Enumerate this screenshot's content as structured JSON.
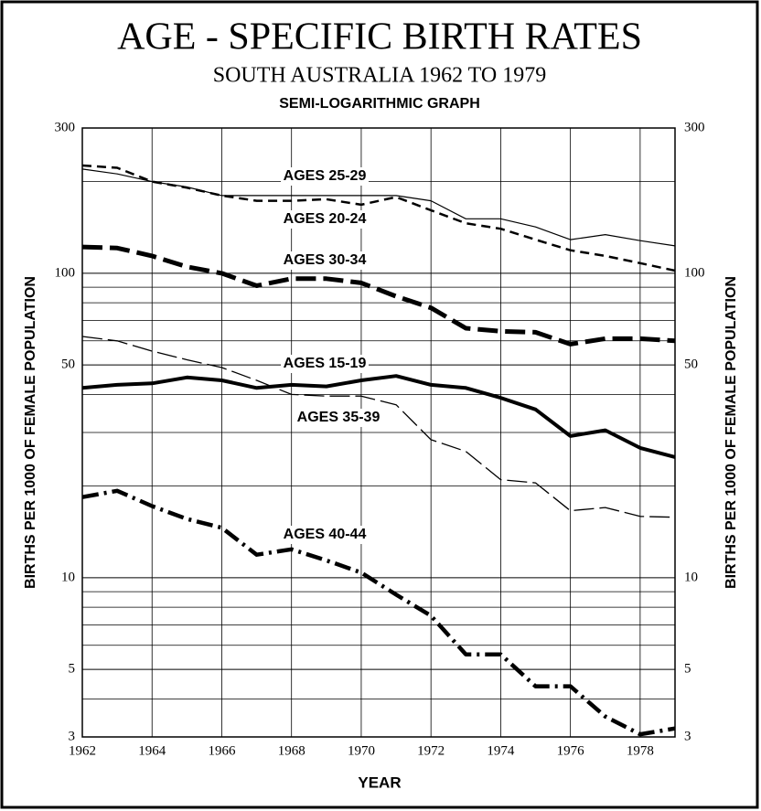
{
  "chart_data": {
    "type": "line",
    "title": "AGE - SPECIFIC BIRTH RATES",
    "subtitle": "SOUTH AUSTRALIA 1962 TO 1979",
    "note": "SEMI-LOGARITHMIC GRAPH",
    "xlabel": "YEAR",
    "ylabel": "BIRTHS PER 1000 OF FEMALE POPULATION",
    "yscale": "log",
    "grid": true,
    "color": "#000000",
    "xlim": [
      1962,
      1979
    ],
    "xticks": [
      1962,
      1964,
      1966,
      1968,
      1970,
      1972,
      1974,
      1976,
      1978
    ],
    "ylim": [
      3,
      300
    ],
    "yticks": [
      3,
      5,
      10,
      50,
      100,
      300
    ],
    "yminor": [
      4,
      6,
      7,
      8,
      9,
      20,
      30,
      40,
      60,
      70,
      80,
      90,
      200
    ],
    "x": [
      1962,
      1963,
      1964,
      1965,
      1966,
      1967,
      1968,
      1969,
      1970,
      1971,
      1972,
      1973,
      1974,
      1975,
      1976,
      1977,
      1978,
      1979
    ],
    "series": [
      {
        "name": "AGES 25-29",
        "line": "solid-thin",
        "values": [
          220,
          212,
          200,
          192,
          180,
          180,
          180,
          180,
          180,
          180,
          173,
          151,
          151,
          142,
          129,
          134,
          128,
          123
        ]
      },
      {
        "name": "AGES 20-24",
        "line": "dashed-medium",
        "values": [
          226,
          222,
          200,
          191,
          180,
          173,
          173,
          175,
          168,
          178,
          161,
          146,
          140,
          129,
          119,
          114,
          108,
          102
        ]
      },
      {
        "name": "AGES 30-34",
        "line": "dashed-thick",
        "values": [
          122,
          121,
          114,
          105,
          100,
          91,
          96,
          96,
          93,
          84,
          77,
          66,
          64.5,
          64,
          58.5,
          61,
          61,
          60
        ]
      },
      {
        "name": "AGES 15-19",
        "line": "solid-thick",
        "values": [
          42,
          43,
          43.5,
          45.5,
          44.5,
          42,
          43,
          42.5,
          44.5,
          46,
          43,
          42,
          39,
          35.7,
          29.2,
          30.5,
          26.7,
          24.9
        ]
      },
      {
        "name": "AGES 35-39",
        "line": "dashed-thin",
        "values": [
          62,
          60,
          55.5,
          52,
          49,
          44.5,
          40,
          39.5,
          39.5,
          37,
          28.4,
          26,
          21,
          20.5,
          16.6,
          17,
          15.9,
          15.8
        ]
      },
      {
        "name": "AGES 40-44",
        "line": "dashdot-thick",
        "values": [
          18.4,
          19.3,
          17.2,
          15.6,
          14.6,
          11.9,
          12.4,
          11.4,
          10.4,
          8.8,
          7.5,
          5.6,
          5.6,
          4.4,
          4.4,
          3.5,
          3.06,
          3.2
        ]
      }
    ]
  }
}
